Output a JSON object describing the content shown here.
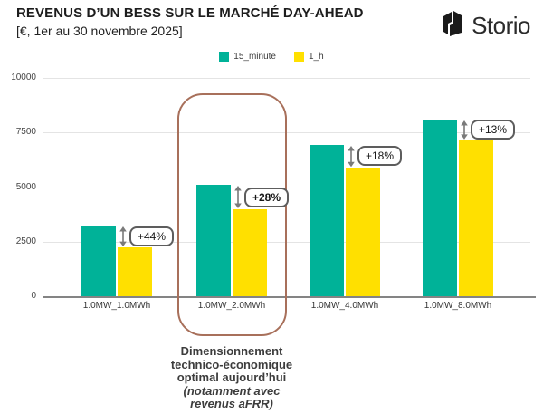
{
  "header": {
    "title": "REVENUS D’UN BESS SUR LE MARCHÉ DAY-AHEAD",
    "subtitle": "[€, 1er au 30 novembre 2025]",
    "logo_text": "Storio",
    "logo_icon": "storio-mark-icon"
  },
  "legend": {
    "items": [
      {
        "label": "15_minute",
        "color": "#00b298"
      },
      {
        "label": "1_h",
        "color": "#ffe000"
      }
    ]
  },
  "chart_data": {
    "type": "bar",
    "title": "REVENUS D’UN BESS SUR LE MARCHÉ DAY-AHEAD",
    "subtitle": "[€, 1er au 30 novembre 2025]",
    "categories": [
      "1.0MW_1.0MWh",
      "1.0MW_2.0MWh",
      "1.0MW_4.0MWh",
      "1.0MW_8.0MWh"
    ],
    "series": [
      {
        "name": "15_minute",
        "color": "#00b298",
        "values": [
          3250,
          5100,
          6950,
          8100
        ]
      },
      {
        "name": "1_h",
        "color": "#ffe000",
        "values": [
          2250,
          3980,
          5900,
          7150
        ]
      }
    ],
    "diff_labels": [
      {
        "text": "+44%",
        "bold": false
      },
      {
        "text": "+28%",
        "bold": true
      },
      {
        "text": "+18%",
        "bold": false
      },
      {
        "text": "+13%",
        "bold": false
      }
    ],
    "ylabel": "",
    "xlabel": "",
    "ylim": [
      0,
      10000
    ],
    "yticks": [
      0,
      2500,
      5000,
      7500,
      10000
    ],
    "grid": true,
    "legend_position": "top"
  },
  "annotation": {
    "highlight_category": "1.0MW_2.0MWh",
    "box_color": "#a8705b",
    "lines": [
      "Dimensionnement",
      "technico-économique",
      "optimal aujourd’hui"
    ],
    "italic_lines": [
      "(notamment avec",
      "revenus aFRR)"
    ]
  }
}
